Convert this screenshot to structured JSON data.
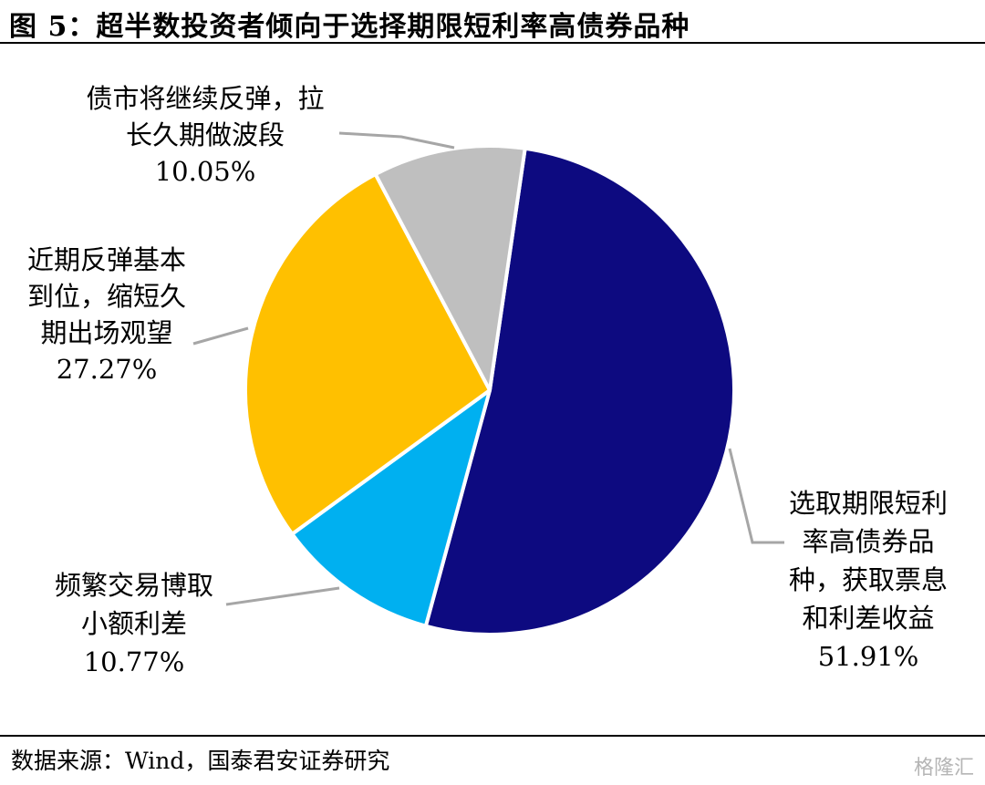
{
  "header": {
    "title": "图 5：超半数投资者倾向于选择期限短利率高债券品种"
  },
  "footer": {
    "source": "数据来源：Wind，国泰君安证券研究",
    "watermark": "格隆汇"
  },
  "chart_data": {
    "type": "pie",
    "title": "图 5：超半数投资者倾向于选择期限短利率高债券品种",
    "start_angle_deg": 8.3,
    "direction": "clockwise",
    "slices": [
      {
        "label_lines": [
          "选取期限短利",
          "率高债券品",
          "种，获取票息",
          "和利差收益"
        ],
        "value": 51.91,
        "value_text": "51.91%",
        "color": "#0D0A80"
      },
      {
        "label_lines": [
          "频繁交易博取",
          "小额利差"
        ],
        "value": 10.77,
        "value_text": "10.77%",
        "color": "#00B0F0"
      },
      {
        "label_lines": [
          "近期反弹基本",
          "到位，缩短久",
          "期出场观望"
        ],
        "value": 27.27,
        "value_text": "27.27%",
        "color": "#FFC000"
      },
      {
        "label_lines": [
          "债市将继续反弹，拉",
          "长久期做波段"
        ],
        "value": 10.05,
        "value_text": "10.05%",
        "color": "#BFBFBF"
      }
    ],
    "leader_color": "#A6A6A6",
    "slice_border_color": "#FFFFFF"
  }
}
